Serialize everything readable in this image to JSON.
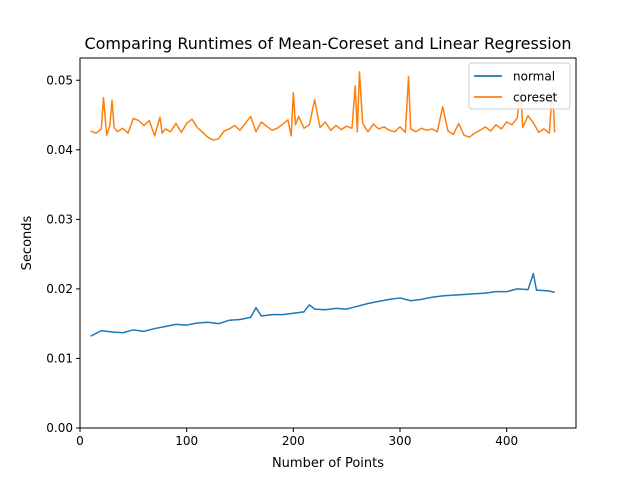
{
  "chart_data": {
    "type": "line",
    "title": "Comparing Runtimes of Mean-Coreset and Linear Regression",
    "xlabel": "Number of Points",
    "ylabel": "Seconds",
    "xlim": [
      0,
      465
    ],
    "ylim": [
      0,
      0.0532
    ],
    "xticks": [
      0,
      100,
      200,
      300,
      400
    ],
    "xtick_labels": [
      "0",
      "100",
      "200",
      "300",
      "400"
    ],
    "yticks": [
      0,
      0.01,
      0.02,
      0.03,
      0.04,
      0.05
    ],
    "ytick_labels": [
      "0.00",
      "0.01",
      "0.02",
      "0.03",
      "0.04",
      "0.05"
    ],
    "grid": false,
    "legend": "top-right",
    "series": [
      {
        "name": "normal",
        "color": "#1f77b4",
        "x": [
          10,
          20,
          30,
          40,
          50,
          60,
          70,
          80,
          90,
          100,
          110,
          120,
          130,
          140,
          150,
          160,
          165,
          170,
          180,
          190,
          200,
          210,
          215,
          220,
          230,
          240,
          250,
          260,
          270,
          280,
          290,
          300,
          310,
          320,
          330,
          340,
          350,
          360,
          370,
          380,
          390,
          400,
          410,
          420,
          425,
          428,
          430,
          440,
          445
        ],
        "values": [
          0.0132,
          0.014,
          0.0138,
          0.0137,
          0.0141,
          0.0139,
          0.0143,
          0.0146,
          0.0149,
          0.0148,
          0.0151,
          0.0152,
          0.015,
          0.0155,
          0.0156,
          0.0159,
          0.0173,
          0.0161,
          0.0163,
          0.0163,
          0.0165,
          0.0167,
          0.0177,
          0.0171,
          0.017,
          0.0172,
          0.0171,
          0.0175,
          0.0179,
          0.0182,
          0.0185,
          0.0187,
          0.0183,
          0.0185,
          0.0188,
          0.019,
          0.0191,
          0.0192,
          0.0193,
          0.0194,
          0.0196,
          0.0196,
          0.02,
          0.0199,
          0.0222,
          0.0198,
          0.0198,
          0.0197,
          0.0195
        ]
      },
      {
        "name": "coreset",
        "color": "#ff7f0e",
        "x": [
          10,
          15,
          20,
          22,
          25,
          28,
          30,
          32,
          35,
          40,
          45,
          50,
          55,
          60,
          65,
          70,
          75,
          77,
          80,
          85,
          90,
          95,
          100,
          105,
          110,
          115,
          120,
          125,
          130,
          135,
          140,
          145,
          150,
          155,
          160,
          165,
          170,
          175,
          180,
          185,
          190,
          195,
          198,
          200,
          202,
          205,
          210,
          215,
          220,
          225,
          230,
          235,
          240,
          245,
          250,
          255,
          258,
          260,
          262,
          265,
          270,
          275,
          280,
          285,
          290,
          295,
          300,
          305,
          308,
          310,
          315,
          320,
          325,
          330,
          335,
          340,
          345,
          350,
          355,
          360,
          365,
          370,
          375,
          380,
          385,
          390,
          395,
          400,
          405,
          410,
          413,
          415,
          420,
          425,
          430,
          435,
          440,
          443,
          445
        ],
        "values": [
          0.0427,
          0.0424,
          0.043,
          0.0475,
          0.0421,
          0.0435,
          0.0471,
          0.0432,
          0.0426,
          0.0431,
          0.0424,
          0.0445,
          0.0442,
          0.0435,
          0.0442,
          0.042,
          0.0447,
          0.0424,
          0.043,
          0.0426,
          0.0438,
          0.0425,
          0.0438,
          0.0444,
          0.0432,
          0.0425,
          0.0418,
          0.0414,
          0.0416,
          0.0427,
          0.043,
          0.0435,
          0.0428,
          0.0438,
          0.0448,
          0.0426,
          0.044,
          0.0434,
          0.0428,
          0.0431,
          0.0437,
          0.0443,
          0.042,
          0.0482,
          0.0436,
          0.0448,
          0.0431,
          0.0436,
          0.0472,
          0.0432,
          0.044,
          0.0428,
          0.0435,
          0.0429,
          0.0434,
          0.0431,
          0.0492,
          0.0426,
          0.0512,
          0.0438,
          0.0426,
          0.0437,
          0.043,
          0.0433,
          0.0428,
          0.0426,
          0.0433,
          0.0425,
          0.0505,
          0.043,
          0.0426,
          0.0431,
          0.0428,
          0.043,
          0.0426,
          0.0462,
          0.0427,
          0.0422,
          0.0438,
          0.0421,
          0.0418,
          0.0424,
          0.0428,
          0.0433,
          0.0427,
          0.0436,
          0.043,
          0.044,
          0.0436,
          0.0446,
          0.049,
          0.0432,
          0.0449,
          0.0439,
          0.0425,
          0.043,
          0.0424,
          0.049,
          0.0425
        ]
      }
    ]
  }
}
